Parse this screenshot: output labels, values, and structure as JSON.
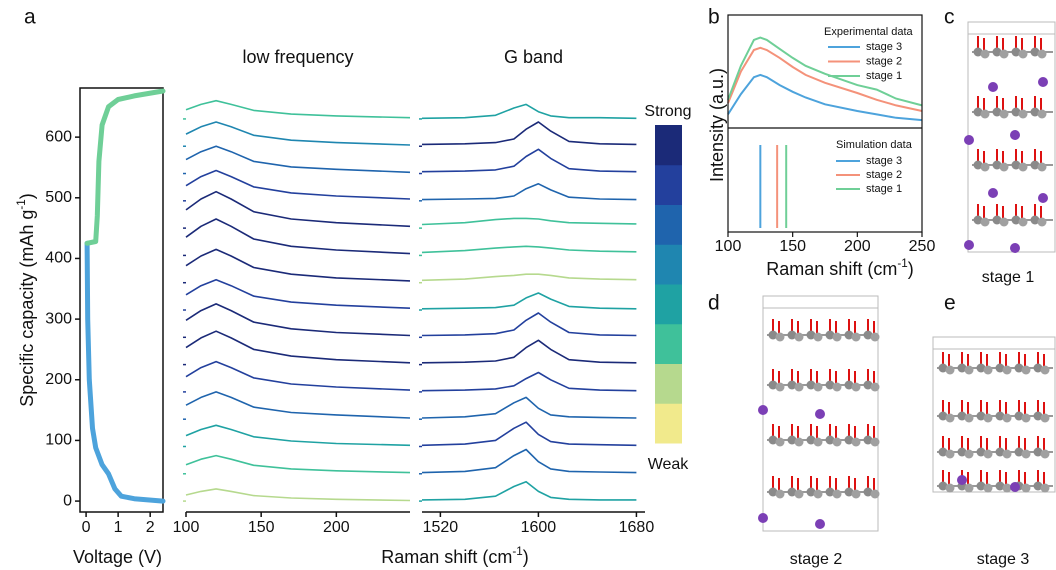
{
  "panel_labels": [
    "a",
    "b",
    "c",
    "d",
    "e"
  ],
  "chart_data": [
    {
      "type": "line",
      "xlabel": "Voltage (V)",
      "ylabel": [
        "Specific capacity (mAh g",
        "-1",
        ")"
      ],
      "xlim": [
        -0.19,
        2.4
      ],
      "ylim": [
        -18,
        681
      ],
      "xticks": [
        0,
        1,
        2
      ],
      "yticks": [
        0,
        100,
        200,
        300,
        400,
        500,
        600
      ],
      "series": [
        {
          "color": "#4da3dc",
          "x": [
            0.03,
            0.05,
            0.1,
            0.2,
            0.3,
            0.5,
            0.7,
            0.9,
            1.1,
            1.5,
            2.4
          ],
          "values": [
            425,
            300,
            200,
            120,
            88,
            60,
            45,
            20,
            8,
            4,
            0
          ]
        },
        {
          "color": "#6fcf97",
          "x": [
            0.03,
            0.3,
            0.35,
            0.4,
            0.5,
            0.7,
            1.0,
            1.5,
            2.4
          ],
          "values": [
            425,
            428,
            470,
            560,
            620,
            650,
            662,
            668,
            676
          ]
        }
      ]
    },
    {
      "type": "waterfall",
      "title": "low frequency",
      "xlabel": [
        "Raman shift (cm",
        "-1",
        ")"
      ],
      "xlim": [
        100,
        249
      ],
      "ylim": [
        -18,
        681
      ],
      "xticks": [
        100,
        150,
        200
      ],
      "x": [
        100,
        110,
        120,
        130,
        145,
        170,
        200,
        249
      ],
      "traces": [
        {
          "offset": 0,
          "color": "#b6d98e",
          "values": [
            10,
            16,
            20,
            16,
            9,
            5,
            3,
            1
          ]
        },
        {
          "offset": 45,
          "color": "#3fc19a",
          "values": [
            15,
            24,
            30,
            24,
            14,
            8,
            5,
            2
          ]
        },
        {
          "offset": 90,
          "color": "#1fa2a3",
          "values": [
            18,
            28,
            35,
            28,
            16,
            9,
            5,
            2
          ]
        },
        {
          "offset": 135,
          "color": "#1f64ad",
          "values": [
            23,
            36,
            45,
            36,
            20,
            11,
            7,
            2
          ]
        },
        {
          "offset": 180,
          "color": "#23409d",
          "values": [
            25,
            40,
            50,
            40,
            23,
            13,
            8,
            3
          ]
        },
        {
          "offset": 225,
          "color": "#1b2a78",
          "values": [
            28,
            44,
            55,
            44,
            25,
            14,
            8,
            3
          ]
        },
        {
          "offset": 270,
          "color": "#1b2a78",
          "values": [
            28,
            44,
            55,
            44,
            25,
            14,
            8,
            3
          ]
        },
        {
          "offset": 315,
          "color": "#23409d",
          "values": [
            25,
            40,
            50,
            40,
            23,
            13,
            8,
            3
          ]
        },
        {
          "offset": 360,
          "color": "#1b2a78",
          "values": [
            28,
            44,
            55,
            44,
            25,
            14,
            8,
            3
          ]
        },
        {
          "offset": 405,
          "color": "#1b2a78",
          "values": [
            30,
            48,
            60,
            48,
            27,
            15,
            9,
            3
          ]
        },
        {
          "offset": 450,
          "color": "#1b2a78",
          "values": [
            30,
            48,
            60,
            48,
            27,
            15,
            9,
            3
          ]
        },
        {
          "offset": 495,
          "color": "#23409d",
          "values": [
            25,
            40,
            50,
            40,
            23,
            13,
            8,
            3
          ]
        },
        {
          "offset": 540,
          "color": "#1f64ad",
          "values": [
            23,
            36,
            45,
            36,
            20,
            11,
            7,
            2
          ]
        },
        {
          "offset": 585,
          "color": "#1f86b0",
          "values": [
            20,
            32,
            40,
            32,
            18,
            10,
            6,
            2
          ]
        },
        {
          "offset": 630,
          "color": "#3fc19a",
          "values": [
            15,
            24,
            30,
            24,
            14,
            8,
            5,
            2
          ]
        }
      ]
    },
    {
      "type": "waterfall",
      "title": "G band",
      "xlim": [
        1505,
        1687
      ],
      "ylim": [
        -18,
        681
      ],
      "xticks": [
        1520,
        1600,
        1680
      ],
      "x": [
        1505,
        1540,
        1565,
        1580,
        1590,
        1600,
        1610,
        1625,
        1650,
        1680
      ],
      "traces": [
        {
          "offset": 0,
          "color": "#1fa2a3",
          "values": [
            2,
            3,
            8,
            24,
            32,
            16,
            6,
            3,
            2,
            2
          ]
        },
        {
          "offset": 45,
          "color": "#1f64ad",
          "values": [
            2,
            4,
            10,
            30,
            40,
            20,
            8,
            4,
            3,
            2
          ]
        },
        {
          "offset": 90,
          "color": "#23409d",
          "values": [
            2,
            4,
            10,
            30,
            40,
            20,
            8,
            4,
            3,
            2
          ]
        },
        {
          "offset": 135,
          "color": "#1f64ad",
          "values": [
            2,
            4,
            9,
            27,
            36,
            18,
            7,
            4,
            3,
            2
          ]
        },
        {
          "offset": 180,
          "color": "#23409d",
          "values": [
            2,
            3,
            5,
            10,
            22,
            32,
            20,
            6,
            3,
            2
          ]
        },
        {
          "offset": 225,
          "color": "#1b2a78",
          "values": [
            3,
            4,
            6,
            12,
            28,
            40,
            25,
            8,
            4,
            3
          ]
        },
        {
          "offset": 270,
          "color": "#23409d",
          "values": [
            3,
            4,
            6,
            12,
            28,
            40,
            25,
            8,
            4,
            3
          ]
        },
        {
          "offset": 315,
          "color": "#1fa2a3",
          "values": [
            2,
            3,
            4,
            8,
            20,
            28,
            18,
            6,
            3,
            2
          ]
        },
        {
          "offset": 360,
          "color": "#b6d98e",
          "values": [
            4,
            6,
            10,
            12,
            14,
            14,
            12,
            8,
            6,
            5
          ]
        },
        {
          "offset": 405,
          "color": "#3fc19a",
          "values": [
            5,
            8,
            12,
            14,
            15,
            14,
            12,
            9,
            7,
            6
          ]
        },
        {
          "offset": 450,
          "color": "#3fc19a",
          "values": [
            6,
            9,
            14,
            16,
            16,
            15,
            12,
            9,
            8,
            7
          ]
        },
        {
          "offset": 495,
          "color": "#1f64ad",
          "values": [
            2,
            3,
            4,
            8,
            20,
            28,
            18,
            6,
            3,
            2
          ]
        },
        {
          "offset": 540,
          "color": "#23409d",
          "values": [
            3,
            4,
            6,
            12,
            28,
            40,
            25,
            8,
            4,
            3
          ]
        },
        {
          "offset": 585,
          "color": "#1b2a78",
          "values": [
            3,
            4,
            6,
            12,
            28,
            40,
            25,
            8,
            4,
            3
          ]
        },
        {
          "offset": 630,
          "color": "#1fa2a3",
          "values": [
            1,
            2,
            6,
            18,
            24,
            12,
            5,
            2,
            2,
            1
          ]
        }
      ]
    },
    {
      "type": "line",
      "legend_title": "Experimental data",
      "ylabel": "Intensity (a.u.)",
      "xlim": [
        100,
        250
      ],
      "ylim": [
        0,
        100
      ],
      "x": [
        100,
        110,
        120,
        125,
        130,
        140,
        150,
        160,
        175,
        200,
        215,
        230,
        250
      ],
      "series": [
        {
          "name": "stage 3",
          "color": "#4da3dc",
          "values": [
            12,
            30,
            45,
            47,
            45,
            38,
            32,
            27,
            21,
            15,
            12,
            9,
            7
          ]
        },
        {
          "name": "stage 2",
          "color": "#f4927a",
          "values": [
            22,
            50,
            69,
            71,
            69,
            62,
            54,
            47,
            40,
            31,
            25,
            20,
            15
          ]
        },
        {
          "name": "stage 1",
          "color": "#6fcf97",
          "values": [
            25,
            55,
            78,
            80,
            78,
            70,
            62,
            55,
            48,
            38,
            34,
            26,
            20
          ]
        }
      ]
    },
    {
      "type": "vlines",
      "legend_title": "Simulation data",
      "xlabel": [
        "Raman shift (cm",
        "-1",
        ")"
      ],
      "xlim": [
        100,
        250
      ],
      "xticks": [
        100,
        150,
        200,
        250
      ],
      "series": [
        {
          "name": "stage 3",
          "color": "#4da3dc",
          "position": 125
        },
        {
          "name": "stage 2",
          "color": "#f4927a",
          "position": 138
        },
        {
          "name": "stage 1",
          "color": "#6fcf97",
          "position": 145
        }
      ]
    }
  ],
  "colorbar": {
    "max_label": "Strong",
    "min_label": "Weak",
    "colors": [
      "#f1ea8c",
      "#b6d98e",
      "#3fc19a",
      "#1fa2a3",
      "#1f86b0",
      "#1f64ad",
      "#23409d",
      "#1b2a78"
    ]
  },
  "structures": [
    {
      "label": "stage 1"
    },
    {
      "label": "stage 2"
    },
    {
      "label": "stage 3"
    }
  ]
}
